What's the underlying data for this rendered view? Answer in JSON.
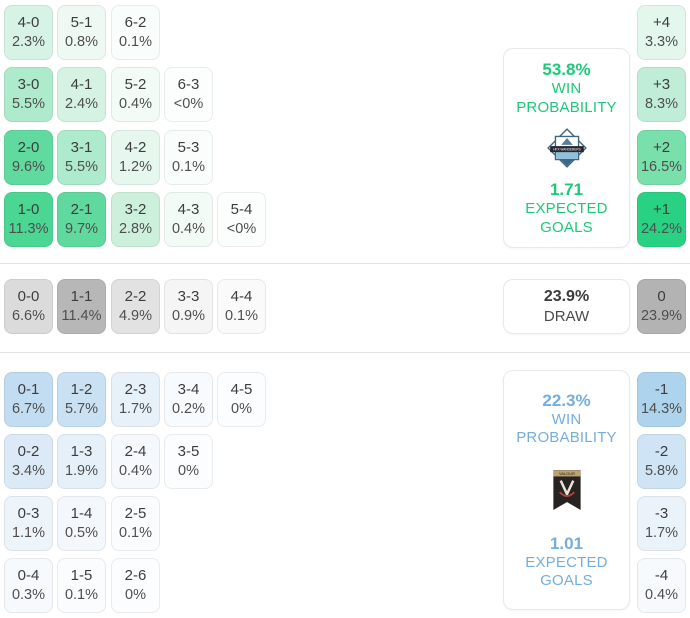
{
  "colors": {
    "home_accent": "#1ec878",
    "away_accent": "#74aedd",
    "draw_text": "#3c3c3c",
    "tile_score_text": "#3d3d3d",
    "tile_pct_text": "#4f4f4f",
    "home_max_tile": "#29d182",
    "draw_max_tile": "#b3b3b3",
    "away_max_tile": "#aed3ec"
  },
  "panels": {
    "home": {
      "win_probability": "53.8%",
      "win_label_line1": "WIN",
      "win_label_line2": "PROBABILITY",
      "expected_goals": "1.71",
      "xg_label_line1": "EXPECTED",
      "xg_label_line2": "GOALS",
      "logo_text": "HFX WANDERERS",
      "icon": "hfx-wanderers-crest"
    },
    "draw": {
      "probability": "23.9%",
      "label": "DRAW"
    },
    "away": {
      "win_probability": "22.3%",
      "win_label_line1": "WIN",
      "win_label_line2": "PROBABILITY",
      "expected_goals": "1.01",
      "xg_label_line1": "EXPECTED",
      "xg_label_line2": "GOALS",
      "logo_text": "VALOUR",
      "icon": "valour-fc-banner"
    }
  },
  "score_grid": {
    "home_rows": [
      [
        {
          "score": "4-0",
          "pct": "2.3%",
          "bg": "#d7f3e5"
        },
        {
          "score": "5-1",
          "pct": "0.8%",
          "bg": "#eef9f3"
        },
        {
          "score": "6-2",
          "pct": "0.1%",
          "bg": "#f9fdfb"
        }
      ],
      [
        {
          "score": "3-0",
          "pct": "5.5%",
          "bg": "#aeeacc"
        },
        {
          "score": "4-1",
          "pct": "2.4%",
          "bg": "#d5f2e3"
        },
        {
          "score": "5-2",
          "pct": "0.4%",
          "bg": "#f3fbf7"
        },
        {
          "score": "6-3",
          "pct": "<0%",
          "bg": "#fcfefd"
        }
      ],
      [
        {
          "score": "2-0",
          "pct": "9.6%",
          "bg": "#60da9e"
        },
        {
          "score": "3-1",
          "pct": "5.5%",
          "bg": "#aeeacc"
        },
        {
          "score": "4-2",
          "pct": "1.2%",
          "bg": "#e6f7ee"
        },
        {
          "score": "5-3",
          "pct": "0.1%",
          "bg": "#f9fdfb"
        }
      ],
      [
        {
          "score": "1-0",
          "pct": "11.3%",
          "bg": "#4bd693"
        },
        {
          "score": "2-1",
          "pct": "9.7%",
          "bg": "#5fd99d"
        },
        {
          "score": "3-2",
          "pct": "2.8%",
          "bg": "#cdf0dd"
        },
        {
          "score": "4-3",
          "pct": "0.4%",
          "bg": "#f3fbf7"
        },
        {
          "score": "5-4",
          "pct": "<0%",
          "bg": "#fcfefd"
        }
      ]
    ],
    "draw_row": [
      {
        "score": "0-0",
        "pct": "6.6%",
        "bg": "#dbdbdb"
      },
      {
        "score": "1-1",
        "pct": "11.4%",
        "bg": "#b7b7b7"
      },
      {
        "score": "2-2",
        "pct": "4.9%",
        "bg": "#e2e2e2"
      },
      {
        "score": "3-3",
        "pct": "0.9%",
        "bg": "#f5f5f5"
      },
      {
        "score": "4-4",
        "pct": "0.1%",
        "bg": "#fafafa"
      }
    ],
    "away_rows": [
      [
        {
          "score": "0-1",
          "pct": "6.7%",
          "bg": "#c2dcf1"
        },
        {
          "score": "1-2",
          "pct": "5.7%",
          "bg": "#cae1f3"
        },
        {
          "score": "2-3",
          "pct": "1.7%",
          "bg": "#e7f1f9"
        },
        {
          "score": "3-4",
          "pct": "0.2%",
          "bg": "#f8fbfd"
        },
        {
          "score": "4-5",
          "pct": "0%",
          "bg": "#fbfdfe"
        }
      ],
      [
        {
          "score": "0-2",
          "pct": "3.4%",
          "bg": "#dbeaf6"
        },
        {
          "score": "1-3",
          "pct": "1.9%",
          "bg": "#e5f0f9"
        },
        {
          "score": "2-4",
          "pct": "0.4%",
          "bg": "#f5f9fd"
        },
        {
          "score": "3-5",
          "pct": "0%",
          "bg": "#fbfdfe"
        }
      ],
      [
        {
          "score": "0-3",
          "pct": "1.1%",
          "bg": "#edf4fa"
        },
        {
          "score": "1-4",
          "pct": "0.5%",
          "bg": "#f4f8fc"
        },
        {
          "score": "2-5",
          "pct": "0.1%",
          "bg": "#fafcfe"
        }
      ],
      [
        {
          "score": "0-4",
          "pct": "0.3%",
          "bg": "#f7fafd"
        },
        {
          "score": "1-5",
          "pct": "0.1%",
          "bg": "#fafcfe"
        },
        {
          "score": "2-6",
          "pct": "0%",
          "bg": "#fbfdfe"
        }
      ]
    ]
  },
  "goal_diff": {
    "home": [
      {
        "diff": "+4",
        "pct": "3.3%",
        "bg": "#e4f7ed"
      },
      {
        "diff": "+3",
        "pct": "8.3%",
        "bg": "#c0edd7"
      },
      {
        "diff": "+2",
        "pct": "16.5%",
        "bg": "#79dfab"
      },
      {
        "diff": "+1",
        "pct": "24.2%",
        "bg": "#29d182"
      }
    ],
    "draw": [
      {
        "diff": "0",
        "pct": "23.9%",
        "bg": "#b3b3b3"
      }
    ],
    "away": [
      {
        "diff": "-1",
        "pct": "14.3%",
        "bg": "#aed3ec"
      },
      {
        "diff": "-2",
        "pct": "5.8%",
        "bg": "#cfe4f4"
      },
      {
        "diff": "-3",
        "pct": "1.7%",
        "bg": "#ebf3fa"
      },
      {
        "diff": "-4",
        "pct": "0.4%",
        "bg": "#f6fafd"
      }
    ]
  },
  "chart_data": {
    "type": "heatmap",
    "description": "Correct-score probability matrix with goal-difference distribution and win/draw probabilities",
    "home": {
      "win_probability_pct": 53.8,
      "expected_goals": 1.71,
      "logo_text": "HFX WANDERERS"
    },
    "away": {
      "win_probability_pct": 22.3,
      "expected_goals": 1.01,
      "logo_text": "VALOUR"
    },
    "draw_probability_pct": 23.9,
    "scores": [
      {
        "score": "4-0",
        "probability": "2.3%"
      },
      {
        "score": "5-1",
        "probability": "0.8%"
      },
      {
        "score": "6-2",
        "probability": "0.1%"
      },
      {
        "score": "3-0",
        "probability": "5.5%"
      },
      {
        "score": "4-1",
        "probability": "2.4%"
      },
      {
        "score": "5-2",
        "probability": "0.4%"
      },
      {
        "score": "6-3",
        "probability": "<0%"
      },
      {
        "score": "2-0",
        "probability": "9.6%"
      },
      {
        "score": "3-1",
        "probability": "5.5%"
      },
      {
        "score": "4-2",
        "probability": "1.2%"
      },
      {
        "score": "5-3",
        "probability": "0.1%"
      },
      {
        "score": "1-0",
        "probability": "11.3%"
      },
      {
        "score": "2-1",
        "probability": "9.7%"
      },
      {
        "score": "3-2",
        "probability": "2.8%"
      },
      {
        "score": "4-3",
        "probability": "0.4%"
      },
      {
        "score": "5-4",
        "probability": "<0%"
      },
      {
        "score": "0-0",
        "probability": "6.6%"
      },
      {
        "score": "1-1",
        "probability": "11.4%"
      },
      {
        "score": "2-2",
        "probability": "4.9%"
      },
      {
        "score": "3-3",
        "probability": "0.9%"
      },
      {
        "score": "4-4",
        "probability": "0.1%"
      },
      {
        "score": "0-1",
        "probability": "6.7%"
      },
      {
        "score": "1-2",
        "probability": "5.7%"
      },
      {
        "score": "2-3",
        "probability": "1.7%"
      },
      {
        "score": "3-4",
        "probability": "0.2%"
      },
      {
        "score": "4-5",
        "probability": "0%"
      },
      {
        "score": "0-2",
        "probability": "3.4%"
      },
      {
        "score": "1-3",
        "probability": "1.9%"
      },
      {
        "score": "2-4",
        "probability": "0.4%"
      },
      {
        "score": "3-5",
        "probability": "0%"
      },
      {
        "score": "0-3",
        "probability": "1.1%"
      },
      {
        "score": "1-4",
        "probability": "0.5%"
      },
      {
        "score": "2-5",
        "probability": "0.1%"
      },
      {
        "score": "0-4",
        "probability": "0.3%"
      },
      {
        "score": "1-5",
        "probability": "0.1%"
      },
      {
        "score": "2-6",
        "probability": "0%"
      }
    ],
    "goal_differences": [
      {
        "diff": "+4",
        "probability": "3.3%"
      },
      {
        "diff": "+3",
        "probability": "8.3%"
      },
      {
        "diff": "+2",
        "probability": "16.5%"
      },
      {
        "diff": "+1",
        "probability": "24.2%"
      },
      {
        "diff": "0",
        "probability": "23.9%"
      },
      {
        "diff": "-1",
        "probability": "14.3%"
      },
      {
        "diff": "-2",
        "probability": "5.8%"
      },
      {
        "diff": "-3",
        "probability": "1.7%"
      },
      {
        "diff": "-4",
        "probability": "0.4%"
      }
    ]
  }
}
